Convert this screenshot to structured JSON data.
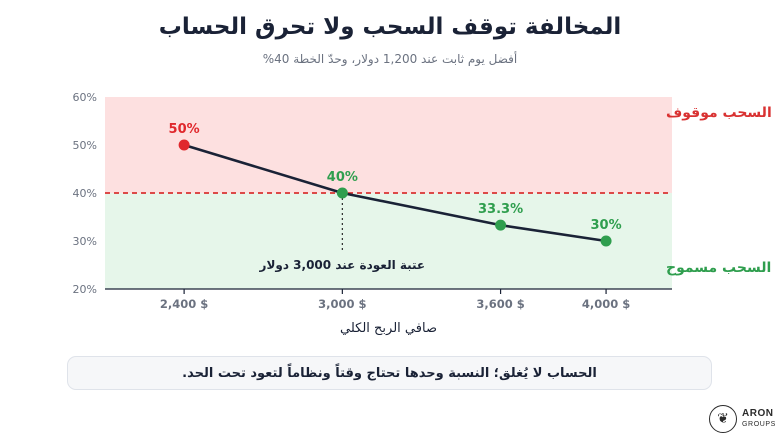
{
  "header": {
    "title": "المخالفة توقف السحب ولا تحرق الحساب",
    "subtitle": "أفضل يوم ثابت عند 1,200 دولار، وحدّ الخطة 40%"
  },
  "chart_data": {
    "type": "line",
    "x": [
      2400,
      3000,
      3600,
      4000
    ],
    "categories": [
      "2,400 $",
      "3,000 $",
      "3,600 $",
      "4,000 $"
    ],
    "values": [
      50,
      40,
      33.3,
      30
    ],
    "data_labels": [
      "50%",
      "40%",
      "33.3%",
      "30%"
    ],
    "point_colors": [
      "#e0282d",
      "#2f9e4e",
      "#2f9e4e",
      "#2f9e4e"
    ],
    "xlabel": "صافي الربح الكلي",
    "ylabel": "",
    "xlim": [
      2100,
      4250
    ],
    "ylim": [
      20,
      60
    ],
    "yticks": [
      20,
      30,
      40,
      50,
      60
    ],
    "ytick_labels": [
      "20%",
      "30%",
      "40%",
      "50%",
      "60%"
    ],
    "threshold": 40,
    "threshold_x": 3000,
    "threshold_label": "عتبة العودة عند 3,000 دولار",
    "zone_above_label": "السحب موقوف",
    "zone_below_label": "السحب مسموح",
    "colors": {
      "zone_above": "#fde0e0",
      "zone_below": "#e6f6ea",
      "line": "#1a2236",
      "threshold_line": "#d93232",
      "red_text": "#d93232",
      "green_text": "#2f9e4e"
    },
    "grid": false
  },
  "note": {
    "text": "الحساب لا يُغلق؛ النسبة وحدها تحتاج وقتاً ونظاماً لتعود تحت الحد."
  },
  "logo": {
    "name": "ARON",
    "sub": "GROUPS",
    "icon": "leaf-icon"
  }
}
